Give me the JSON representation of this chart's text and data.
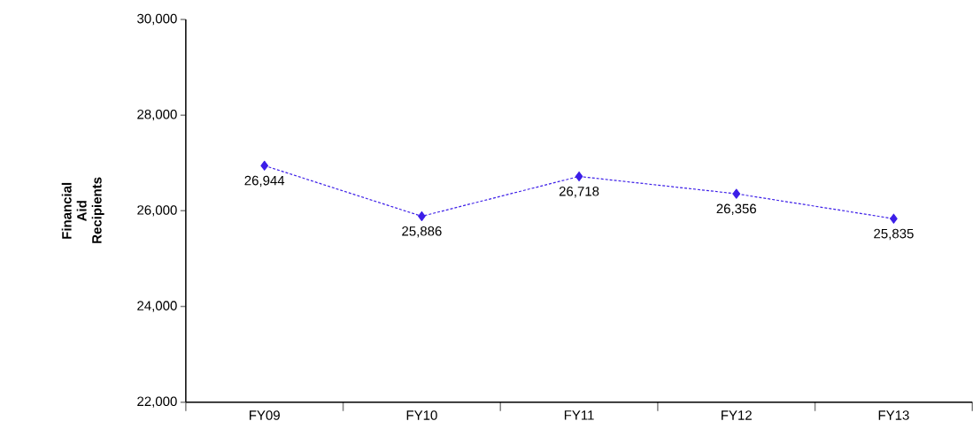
{
  "chart_data": {
    "type": "line",
    "ylabel": "Financial Aid Recipients",
    "categories": [
      "FY09",
      "FY10",
      "FY11",
      "FY12",
      "FY13"
    ],
    "series": [
      {
        "color": "#3c1ee8",
        "values": [
          26944,
          25886,
          26718,
          26356,
          25835
        ],
        "value_labels": [
          "26,944",
          "25,886",
          "26,718",
          "26,356",
          "25,835"
        ]
      }
    ],
    "ylim": [
      22000,
      30000
    ],
    "yticks": [
      {
        "value": 22000,
        "label": "22,000"
      },
      {
        "value": 24000,
        "label": "24,000"
      },
      {
        "value": 26000,
        "label": "26,000"
      },
      {
        "value": 28000,
        "label": "28,000"
      },
      {
        "value": 30000,
        "label": "30,000"
      }
    ],
    "grid": false,
    "marker": "diamond",
    "line_style": "dashed"
  }
}
